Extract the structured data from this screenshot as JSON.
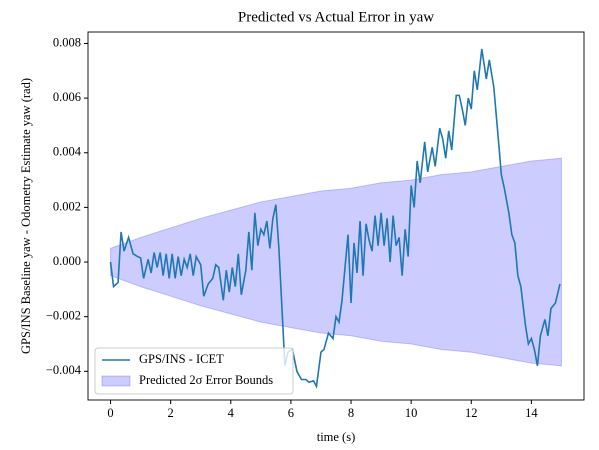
{
  "chart_data": {
    "type": "line",
    "title": "Predicted vs Actual Error in yaw",
    "x_label": "time (s)",
    "y_label": "GPS/INS Baseline yaw - Odometry Estimate yaw (rad)",
    "xlim": [
      -0.75,
      15.75
    ],
    "xticks": [
      0,
      2,
      4,
      6,
      8,
      10,
      12,
      14
    ],
    "ylim": [
      -0.00505,
      0.00842
    ],
    "yticks": [
      {
        "value": -0.004,
        "label": "−0.004"
      },
      {
        "value": -0.002,
        "label": "−0.002"
      },
      {
        "value": 0,
        "label": "0.000"
      },
      {
        "value": 0.002,
        "label": "0.002"
      },
      {
        "value": 0.004,
        "label": "0.004"
      },
      {
        "value": 0.006,
        "label": "0.006"
      },
      {
        "value": 0.008,
        "label": "0.008"
      }
    ],
    "legend": "lower left",
    "series": [
      {
        "name": "GPS/INS - ICET",
        "kind": "line",
        "color": "#1f77b4",
        "x": [
          0,
          0.1,
          0.25,
          0.35,
          0.45,
          0.6,
          0.75,
          0.9,
          1.0,
          1.1,
          1.25,
          1.35,
          1.45,
          1.55,
          1.65,
          1.75,
          1.85,
          1.95,
          2.05,
          2.15,
          2.25,
          2.35,
          2.45,
          2.55,
          2.65,
          2.75,
          2.85,
          3.0,
          3.1,
          3.25,
          3.4,
          3.5,
          3.6,
          3.75,
          3.85,
          3.95,
          4.05,
          4.15,
          4.25,
          4.35,
          4.5,
          4.6,
          4.7,
          4.8,
          4.9,
          5.0,
          5.1,
          5.2,
          5.3,
          5.4,
          5.5,
          5.6,
          5.8,
          5.9,
          6.05,
          6.2,
          6.35,
          6.5,
          6.6,
          6.75,
          6.85,
          7.0,
          7.1,
          7.25,
          7.4,
          7.5,
          7.6,
          7.7,
          7.8,
          7.9,
          8.0,
          8.1,
          8.2,
          8.3,
          8.4,
          8.5,
          8.6,
          8.7,
          8.8,
          8.9,
          9.0,
          9.1,
          9.2,
          9.3,
          9.4,
          9.5,
          9.6,
          9.7,
          9.8,
          9.9,
          10.0,
          10.1,
          10.2,
          10.3,
          10.45,
          10.55,
          10.7,
          10.8,
          10.95,
          11.05,
          11.15,
          11.25,
          11.35,
          11.5,
          11.6,
          11.7,
          11.8,
          11.9,
          12.0,
          12.1,
          12.2,
          12.35,
          12.5,
          12.6,
          12.75,
          12.9,
          13.0,
          13.1,
          13.25,
          13.35,
          13.45,
          13.55,
          13.65,
          13.8,
          13.9,
          14.0,
          14.1,
          14.2,
          14.3,
          14.45,
          14.55,
          14.65,
          14.8,
          14.95
        ],
        "values": [
          0,
          -0.0009,
          -0.00075,
          0.0011,
          0.0004,
          0.0009,
          0.0003,
          0.0002,
          0.00015,
          -0.0006,
          0.0001,
          -0.0004,
          0.00035,
          -0.0002,
          0.00035,
          -0.0005,
          0.0003,
          -0.0006,
          0.0003,
          -0.0006,
          0.0002,
          -0.0005,
          0.0001,
          -0.0002,
          0.0003,
          -0.0005,
          0.0002,
          -0.0001,
          -0.00125,
          -0.0008,
          -0.0006,
          -0.0001,
          -0.0002,
          -0.0014,
          -0.0003,
          -0.0011,
          -0.0002,
          -0.0009,
          0.0003,
          -0.0012,
          -0.0003,
          0.0011,
          -0.0003,
          0.0018,
          0.0006,
          0.0012,
          0.001,
          0.0015,
          0.0005,
          0.0016,
          0.0021,
          0.0005,
          -0.0038,
          -0.0033,
          -0.0032,
          -0.004,
          -0.0043,
          -0.0043,
          -0.0044,
          -0.00435,
          -0.00455,
          -0.0033,
          -0.0032,
          -0.0026,
          -0.0028,
          -0.002,
          -0.0022,
          -0.0014,
          -0.0002,
          0.001,
          -0.0015,
          0.0007,
          -0.0004,
          0.0015,
          -0.0005,
          0.0014,
          0.0008,
          0.0004,
          0.0017,
          0.0006,
          0.0018,
          0.0006,
          0.0016,
          0,
          0.0017,
          0.0006,
          0.0009,
          -0.0005,
          0.0012,
          0.0002,
          0.0028,
          0.002,
          0.0037,
          0.0029,
          0.0044,
          0.0033,
          0.0042,
          0.0035,
          0.0049,
          0.0045,
          0.0038,
          0.0048,
          0.0041,
          0.0061,
          0.0061,
          0.0056,
          0.005,
          0.006,
          0.0056,
          0.007,
          0.0063,
          0.0078,
          0.0067,
          0.0074,
          0.0064,
          0.0045,
          0.0032,
          0.0027,
          0.0018,
          0.001,
          0.0007,
          -0.0005,
          -0.0009,
          -0.0023,
          -0.003,
          -0.0028,
          -0.0032,
          -0.0038,
          -0.0027,
          -0.0021,
          -0.0027,
          -0.0017,
          -0.0015,
          -0.0008
        ]
      },
      {
        "name": "Predicted 2σ Error Bounds",
        "kind": "band",
        "color": "#0000ff",
        "alpha": 0.2,
        "x": [
          0,
          1,
          2,
          3,
          4,
          5,
          6,
          7,
          8,
          9,
          10,
          11,
          12,
          13,
          14,
          15
        ],
        "upper": [
          0.0005,
          0.0009,
          0.00125,
          0.0016,
          0.0019,
          0.0022,
          0.0024,
          0.0026,
          0.0027,
          0.0029,
          0.003,
          0.0032,
          0.0033,
          0.0035,
          0.0037,
          0.0038
        ],
        "lower": [
          -0.0005,
          -0.0009,
          -0.00125,
          -0.0016,
          -0.0019,
          -0.0022,
          -0.0024,
          -0.0026,
          -0.0027,
          -0.0029,
          -0.003,
          -0.0032,
          -0.0033,
          -0.0035,
          -0.0037,
          -0.0038
        ]
      }
    ]
  }
}
